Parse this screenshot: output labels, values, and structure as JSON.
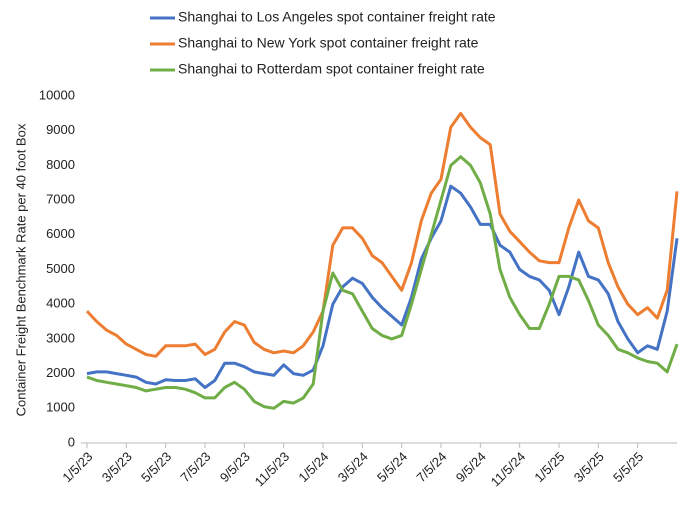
{
  "chart_data": {
    "type": "line",
    "y_label": "Container Freight Benchmark Rate per 40 foot Box",
    "categories": [
      "1/5/23",
      null,
      null,
      null,
      "3/5/23",
      null,
      null,
      null,
      "5/5/23",
      null,
      null,
      null,
      "7/5/23",
      null,
      null,
      null,
      "9/5/23",
      null,
      null,
      null,
      "11/5/23",
      null,
      null,
      null,
      "1/5/24",
      null,
      null,
      null,
      "3/5/24",
      null,
      null,
      null,
      "5/5/24",
      null,
      null,
      null,
      "7/5/24",
      null,
      null,
      null,
      "9/5/24",
      null,
      null,
      null,
      "11/5/24",
      null,
      null,
      null,
      "1/5/25",
      null,
      null,
      null,
      "3/5/25",
      null,
      null,
      null,
      "5/5/25",
      null,
      null,
      null,
      null
    ],
    "series": [
      {
        "name": "Shanghai to Los Angeles spot container freight rate",
        "color": "#4472c4",
        "values": [
          2000,
          2050,
          2050,
          2000,
          1950,
          1900,
          1750,
          1700,
          1820,
          1800,
          1800,
          1850,
          1600,
          1800,
          2300,
          2300,
          2200,
          2050,
          2000,
          1950,
          2250,
          2000,
          1950,
          2100,
          2800,
          4000,
          4500,
          4750,
          4600,
          4200,
          3900,
          3650,
          3400,
          4200,
          5300,
          5900,
          6400,
          7400,
          7200,
          6800,
          6300,
          6300,
          5700,
          5500,
          5000,
          4800,
          4700,
          4400,
          3700,
          4500,
          5500,
          4800,
          4700,
          4300,
          3500,
          3000,
          2600,
          2800,
          2700,
          3800,
          5900
        ]
      },
      {
        "name": "Shanghai to New York spot container freight rate",
        "color": "#ed7d31",
        "values": [
          3800,
          3500,
          3250,
          3100,
          2850,
          2700,
          2550,
          2500,
          2800,
          2800,
          2800,
          2850,
          2550,
          2700,
          3200,
          3500,
          3400,
          2900,
          2700,
          2600,
          2650,
          2600,
          2800,
          3200,
          3800,
          5700,
          6200,
          6200,
          5900,
          5400,
          5200,
          4800,
          4400,
          5200,
          6400,
          7200,
          7600,
          9100,
          9500,
          9100,
          8800,
          8600,
          6600,
          6100,
          5800,
          5500,
          5250,
          5200,
          5200,
          6200,
          7000,
          6400,
          6200,
          5200,
          4500,
          4000,
          3700,
          3900,
          3600,
          4400,
          7250
        ]
      },
      {
        "name": "Shanghai to Rotterdam spot container freight rate",
        "color": "#70ad47",
        "values": [
          1900,
          1800,
          1750,
          1700,
          1650,
          1600,
          1500,
          1550,
          1600,
          1600,
          1550,
          1450,
          1300,
          1300,
          1600,
          1750,
          1550,
          1200,
          1050,
          1000,
          1200,
          1150,
          1300,
          1700,
          3800,
          4900,
          4400,
          4300,
          3800,
          3300,
          3100,
          3000,
          3100,
          4000,
          5000,
          6000,
          7000,
          8000,
          8250,
          8000,
          7500,
          6600,
          5000,
          4200,
          3700,
          3300,
          3300,
          4000,
          4800,
          4800,
          4700,
          4100,
          3400,
          3100,
          2700,
          2600,
          2450,
          2350,
          2300,
          2050,
          2850
        ]
      }
    ],
    "ylim": [
      0,
      10000
    ],
    "yticks": [
      0,
      1000,
      2000,
      3000,
      4000,
      5000,
      6000,
      7000,
      8000,
      9000,
      10000
    ]
  }
}
